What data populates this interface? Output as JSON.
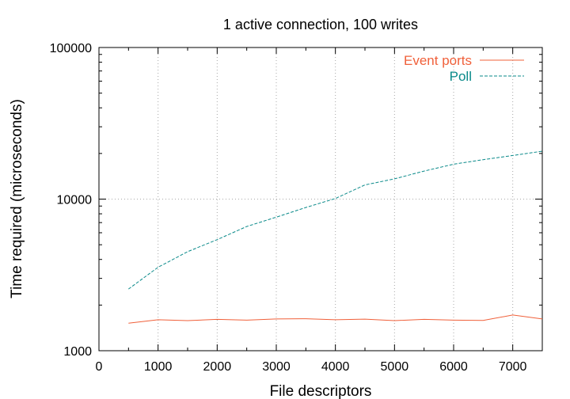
{
  "chart_data": {
    "type": "line",
    "title": "1 active connection, 100 writes",
    "xlabel": "File descriptors",
    "ylabel": "Time required (microseconds)",
    "xlim": [
      0,
      7500
    ],
    "ylim": [
      1000,
      100000
    ],
    "yscale": "log",
    "grid": true,
    "legend_position": "top-right",
    "x_ticks": [
      0,
      1000,
      2000,
      3000,
      4000,
      5000,
      6000,
      7000
    ],
    "x_tick_labels": [
      "0",
      "1000",
      "2000",
      "3000",
      "4000",
      "5000",
      "6000",
      "7000"
    ],
    "y_ticks": [
      1000,
      10000,
      100000
    ],
    "y_tick_labels": [
      "1000",
      "10000",
      "100000"
    ],
    "x": [
      500,
      1000,
      1500,
      2000,
      2500,
      3000,
      3500,
      4000,
      4500,
      5000,
      5500,
      6000,
      6500,
      7000,
      7500
    ],
    "series": [
      {
        "name": "Event ports",
        "color": "#f0603a",
        "style": "solid",
        "values": [
          1520,
          1600,
          1580,
          1610,
          1590,
          1620,
          1625,
          1600,
          1615,
          1580,
          1610,
          1590,
          1585,
          1720,
          1620
        ]
      },
      {
        "name": "Poll",
        "color": "#0a8a8a",
        "style": "dashed",
        "values": [
          2550,
          3550,
          4500,
          5400,
          6600,
          7600,
          8800,
          10100,
          12400,
          13600,
          15300,
          17000,
          18200,
          19400,
          20700
        ]
      }
    ]
  }
}
